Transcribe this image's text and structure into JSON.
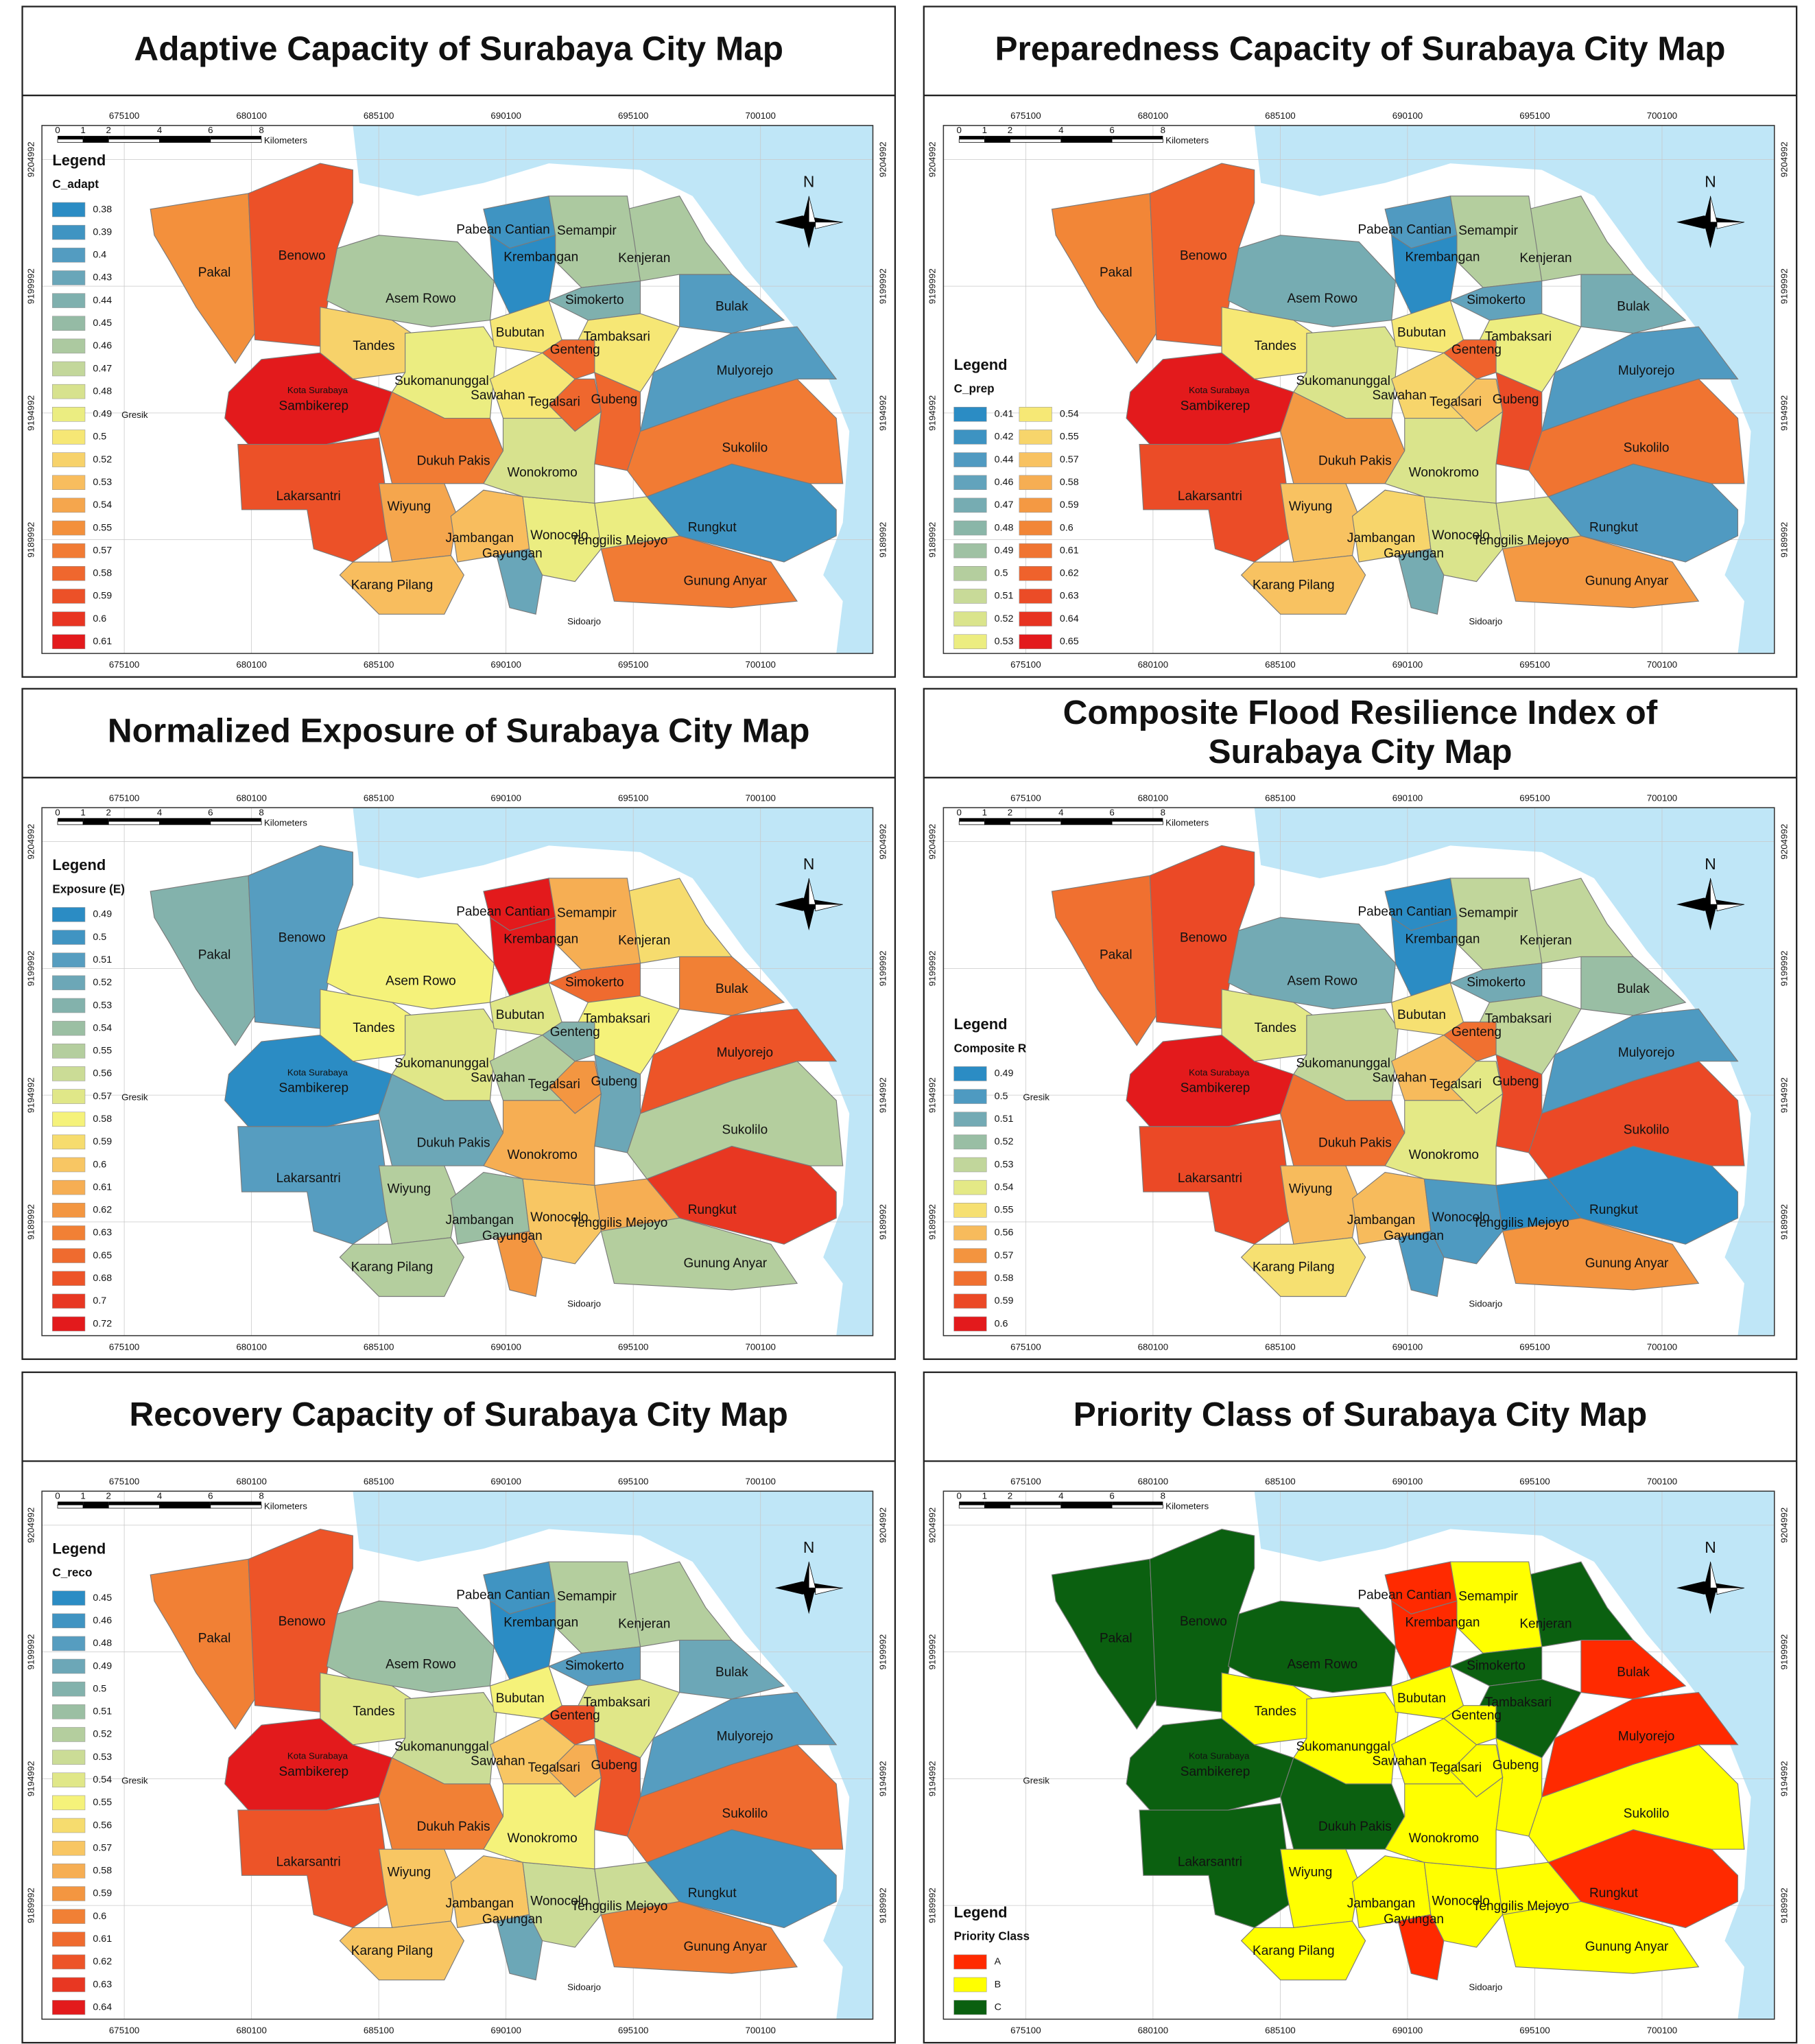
{
  "districts": [
    "Pakal",
    "Benowo",
    "Asem Rowo",
    "Tandes",
    "Sambikerep",
    "Lakarsantri",
    "Sukomanunggal",
    "Dukuh Pakis",
    "Wiyung",
    "Karang Pilang",
    "Jambangan",
    "Gayungan",
    "Wonocolo",
    "Tenggilis Mejoyo",
    "Gunung Anyar",
    "Rungkut",
    "Sukolilo",
    "Mulyorejo",
    "Bulak",
    "Kenjeran",
    "Semampir",
    "Pabean Cantian",
    "Krembangan",
    "Simokerto",
    "Bubutan",
    "Tambaksari",
    "Genteng",
    "Sawahan",
    "Tegalsari",
    "Gubeng",
    "Wonokromo"
  ],
  "place_labels": {
    "gresik": "Gresik",
    "sidoarjo": "Sidoarjo",
    "city": "Kota Surabaya"
  },
  "north": "N",
  "legend_heading": "Legend",
  "xticks": [
    675100,
    680100,
    685100,
    690100,
    695100,
    700100
  ],
  "yticks": [
    9204992,
    9199992,
    9194992,
    9189992
  ],
  "scale_bar": {
    "ticks": [
      0,
      1,
      2,
      4,
      6,
      8
    ],
    "unit": "Kilometers"
  },
  "color_ramp": [
    "#2b8cc4",
    "#5b9fc0",
    "#8fb8a6",
    "#c6d99a",
    "#f5f27a",
    "#f8c060",
    "#f28a38",
    "#ee5b2a",
    "#e31a1c"
  ],
  "sea_color": "#bfe6f7",
  "panels": [
    {
      "title_lines": [
        "Adaptive Capacity of Surabaya City Map"
      ],
      "legend_title": "C_adapt",
      "legend_columns": 1,
      "classes": [
        0.38,
        0.39,
        0.4,
        0.43,
        0.44,
        0.45,
        0.46,
        0.47,
        0.48,
        0.49,
        0.5,
        0.52,
        0.53,
        0.54,
        0.55,
        0.57,
        0.58,
        0.59,
        0.6,
        0.61
      ],
      "values": [
        0.55,
        0.59,
        0.46,
        0.52,
        0.61,
        0.59,
        0.49,
        0.57,
        0.54,
        0.53,
        0.53,
        0.43,
        0.49,
        0.49,
        0.57,
        0.39,
        0.57,
        0.4,
        0.4,
        0.46,
        0.46,
        0.39,
        0.38,
        0.44,
        0.5,
        0.5,
        0.58,
        0.5,
        0.58,
        0.58,
        0.48
      ]
    },
    {
      "title_lines": [
        "Preparedness Capacity of Surabaya City Map"
      ],
      "legend_title": "C_prep",
      "legend_columns": 2,
      "classes": [
        0.41,
        0.42,
        0.44,
        0.46,
        0.47,
        0.48,
        0.49,
        0.5,
        0.51,
        0.52,
        0.53,
        0.54,
        0.55,
        0.57,
        0.58,
        0.59,
        0.6,
        0.61,
        0.62,
        0.63,
        0.64,
        0.65
      ],
      "values": [
        0.6,
        0.62,
        0.47,
        0.54,
        0.65,
        0.63,
        0.52,
        0.59,
        0.57,
        0.57,
        0.55,
        0.47,
        0.52,
        0.52,
        0.59,
        0.44,
        0.61,
        0.44,
        0.47,
        0.5,
        0.5,
        0.44,
        0.41,
        0.46,
        0.54,
        0.53,
        0.62,
        0.55,
        0.57,
        0.63,
        0.52
      ]
    },
    {
      "title_lines": [
        "Normalized Exposure of Surabaya City Map"
      ],
      "legend_title": "Exposure (E)",
      "legend_columns": 1,
      "classes": [
        0.49,
        0.5,
        0.51,
        0.52,
        0.53,
        0.54,
        0.55,
        0.56,
        0.57,
        0.58,
        0.59,
        0.6,
        0.61,
        0.62,
        0.63,
        0.65,
        0.68,
        0.7,
        0.72
      ],
      "values": [
        0.53,
        0.51,
        0.58,
        0.58,
        0.49,
        0.51,
        0.57,
        0.52,
        0.55,
        0.55,
        0.54,
        0.62,
        0.6,
        0.61,
        0.55,
        0.7,
        0.55,
        0.68,
        0.63,
        0.59,
        0.61,
        0.72,
        0.72,
        0.65,
        0.57,
        0.58,
        0.53,
        0.55,
        0.62,
        0.52,
        0.61
      ]
    },
    {
      "title_lines": [
        "Composite Flood Resilience Index of",
        "Surabaya City Map"
      ],
      "legend_title": "Composite R",
      "legend_columns": 1,
      "classes": [
        0.49,
        0.5,
        0.51,
        0.52,
        0.53,
        0.54,
        0.55,
        0.56,
        0.57,
        0.58,
        0.59,
        0.6
      ],
      "values": [
        0.58,
        0.59,
        0.51,
        0.54,
        0.6,
        0.59,
        0.53,
        0.58,
        0.56,
        0.55,
        0.56,
        0.5,
        0.5,
        0.49,
        0.57,
        0.49,
        0.59,
        0.5,
        0.52,
        0.53,
        0.53,
        0.49,
        0.49,
        0.51,
        0.55,
        0.53,
        0.58,
        0.56,
        0.54,
        0.59,
        0.54
      ]
    },
    {
      "title_lines": [
        "Recovery Capacity of Surabaya City Map"
      ],
      "legend_title": "C_reco",
      "legend_columns": 1,
      "classes": [
        0.45,
        0.46,
        0.48,
        0.49,
        0.5,
        0.51,
        0.52,
        0.53,
        0.54,
        0.55,
        0.56,
        0.57,
        0.58,
        0.59,
        0.6,
        0.61,
        0.62,
        0.63,
        0.64
      ],
      "values": [
        0.6,
        0.62,
        0.51,
        0.54,
        0.64,
        0.62,
        0.53,
        0.6,
        0.57,
        0.57,
        0.57,
        0.49,
        0.53,
        0.53,
        0.6,
        0.46,
        0.61,
        0.48,
        0.49,
        0.52,
        0.52,
        0.46,
        0.45,
        0.48,
        0.55,
        0.54,
        0.62,
        0.57,
        0.58,
        0.62,
        0.55
      ]
    },
    {
      "title_lines": [
        "Priority Class of Surabaya City Map"
      ],
      "legend_title": "Priority Class",
      "legend_columns": 1,
      "classes": [
        "A",
        "B",
        "C"
      ],
      "colors": [
        "#ff2a00",
        "#ffff00",
        "#0b6010"
      ],
      "values": [
        "C",
        "C",
        "C",
        "B",
        "C",
        "C",
        "B",
        "C",
        "B",
        "B",
        "B",
        "A",
        "B",
        "B",
        "B",
        "A",
        "B",
        "A",
        "A",
        "C",
        "B",
        "A",
        "A",
        "C",
        "B",
        "C",
        "B",
        "B",
        "B",
        "B",
        "B"
      ]
    }
  ]
}
